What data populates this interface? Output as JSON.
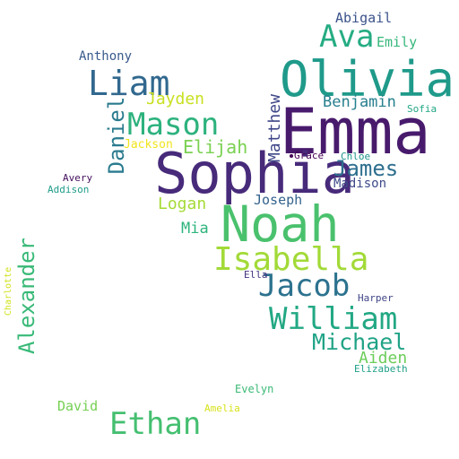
{
  "words": {
    "emma": {
      "text": "Emma",
      "color": "#481a6c"
    },
    "sophia": {
      "text": "Sophia",
      "color": "#472a7a"
    },
    "olivia": {
      "text": "Olivia",
      "color": "#1f9a8a"
    },
    "noah": {
      "text": "Noah",
      "color": "#4ac16d"
    },
    "isabella": {
      "text": "Isabella",
      "color": "#a2da37"
    },
    "jacob": {
      "text": "Jacob",
      "color": "#2c728e"
    },
    "william": {
      "text": "William",
      "color": "#22a884"
    },
    "ethan": {
      "text": "Ethan",
      "color": "#44bf70"
    },
    "mason": {
      "text": "Mason",
      "color": "#2db27d"
    },
    "liam": {
      "text": "Liam",
      "color": "#31688e"
    },
    "ava": {
      "text": "Ava",
      "color": "#25ac82"
    },
    "michael": {
      "text": "Michael",
      "color": "#20a386"
    },
    "james": {
      "text": "James",
      "color": "#2e6f8e"
    },
    "elijah": {
      "text": "Elijah",
      "color": "#7ad151"
    },
    "jayden": {
      "text": "Jayden",
      "color": "#c8e020"
    },
    "benjamin": {
      "text": "Benjamin",
      "color": "#277f8e"
    },
    "logan": {
      "text": "Logan",
      "color": "#a5db36"
    },
    "aiden": {
      "text": "Aiden",
      "color": "#6ccd5a"
    },
    "mia": {
      "text": "Mia",
      "color": "#2fb47c"
    },
    "joseph": {
      "text": "Joseph",
      "color": "#33638d"
    },
    "emily": {
      "text": "Emily",
      "color": "#35b779"
    },
    "abigail": {
      "text": "Abigail",
      "color": "#3b528b"
    },
    "madison": {
      "text": "Madison",
      "color": "#3e4a89"
    },
    "anthony": {
      "text": "Anthony",
      "color": "#38598c"
    },
    "david": {
      "text": "David",
      "color": "#75d054"
    },
    "evelyn": {
      "text": "Evelyn",
      "color": "#3aba76"
    },
    "jackson": {
      "text": "Jackson",
      "color": "#f1e51d"
    },
    "harper": {
      "text": "Harper",
      "color": "#404688"
    },
    "elizabeth": {
      "text": "Elizabeth",
      "color": "#1fa088"
    },
    "sofia": {
      "text": "Sofia",
      "color": "#22a785"
    },
    "grace": {
      "text": "Grace",
      "color": "#440154"
    },
    "chloe": {
      "text": "Chloe",
      "color": "#1f958b"
    },
    "avery": {
      "text": "Avery",
      "color": "#440f5d"
    },
    "addison": {
      "text": "Addison",
      "color": "#1e9c89"
    },
    "ella": {
      "text": "Ella",
      "color": "#46327e"
    },
    "amelia": {
      "text": "Amelia",
      "color": "#d8e219"
    },
    "daniel": {
      "text": "Daniel",
      "color": "#2a7b8e"
    },
    "matthew": {
      "text": "Matthew",
      "color": "#3f4788"
    },
    "alexander": {
      "text": "Alexander",
      "color": "#38b977"
    },
    "charlotte": {
      "text": "Charlotte",
      "color": "#d2e21b"
    }
  }
}
